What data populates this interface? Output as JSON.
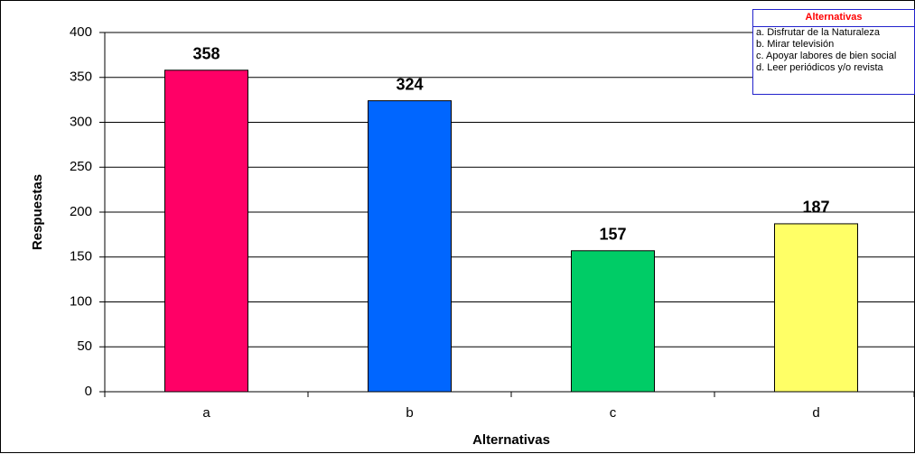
{
  "chart_data": {
    "type": "bar",
    "x_label": "Alternativas",
    "y_label": "Respuestas",
    "categories": [
      "a",
      "b",
      "c",
      "d"
    ],
    "values": [
      358,
      324,
      157,
      187
    ],
    "colors": [
      "#ff0066",
      "#0066ff",
      "#00cc66",
      "#ffff66"
    ],
    "ylim": [
      0,
      400
    ],
    "yticks": [
      0,
      50,
      100,
      150,
      200,
      250,
      300,
      350,
      400
    ],
    "grid": true,
    "legend_box": {
      "title": "Alternativas",
      "items": [
        "a. Disfrutar de la Naturaleza",
        "b. Mirar televisión",
        "c. Apoyar labores de bien social",
        "d. Leer periódicos y/o revista"
      ]
    }
  }
}
